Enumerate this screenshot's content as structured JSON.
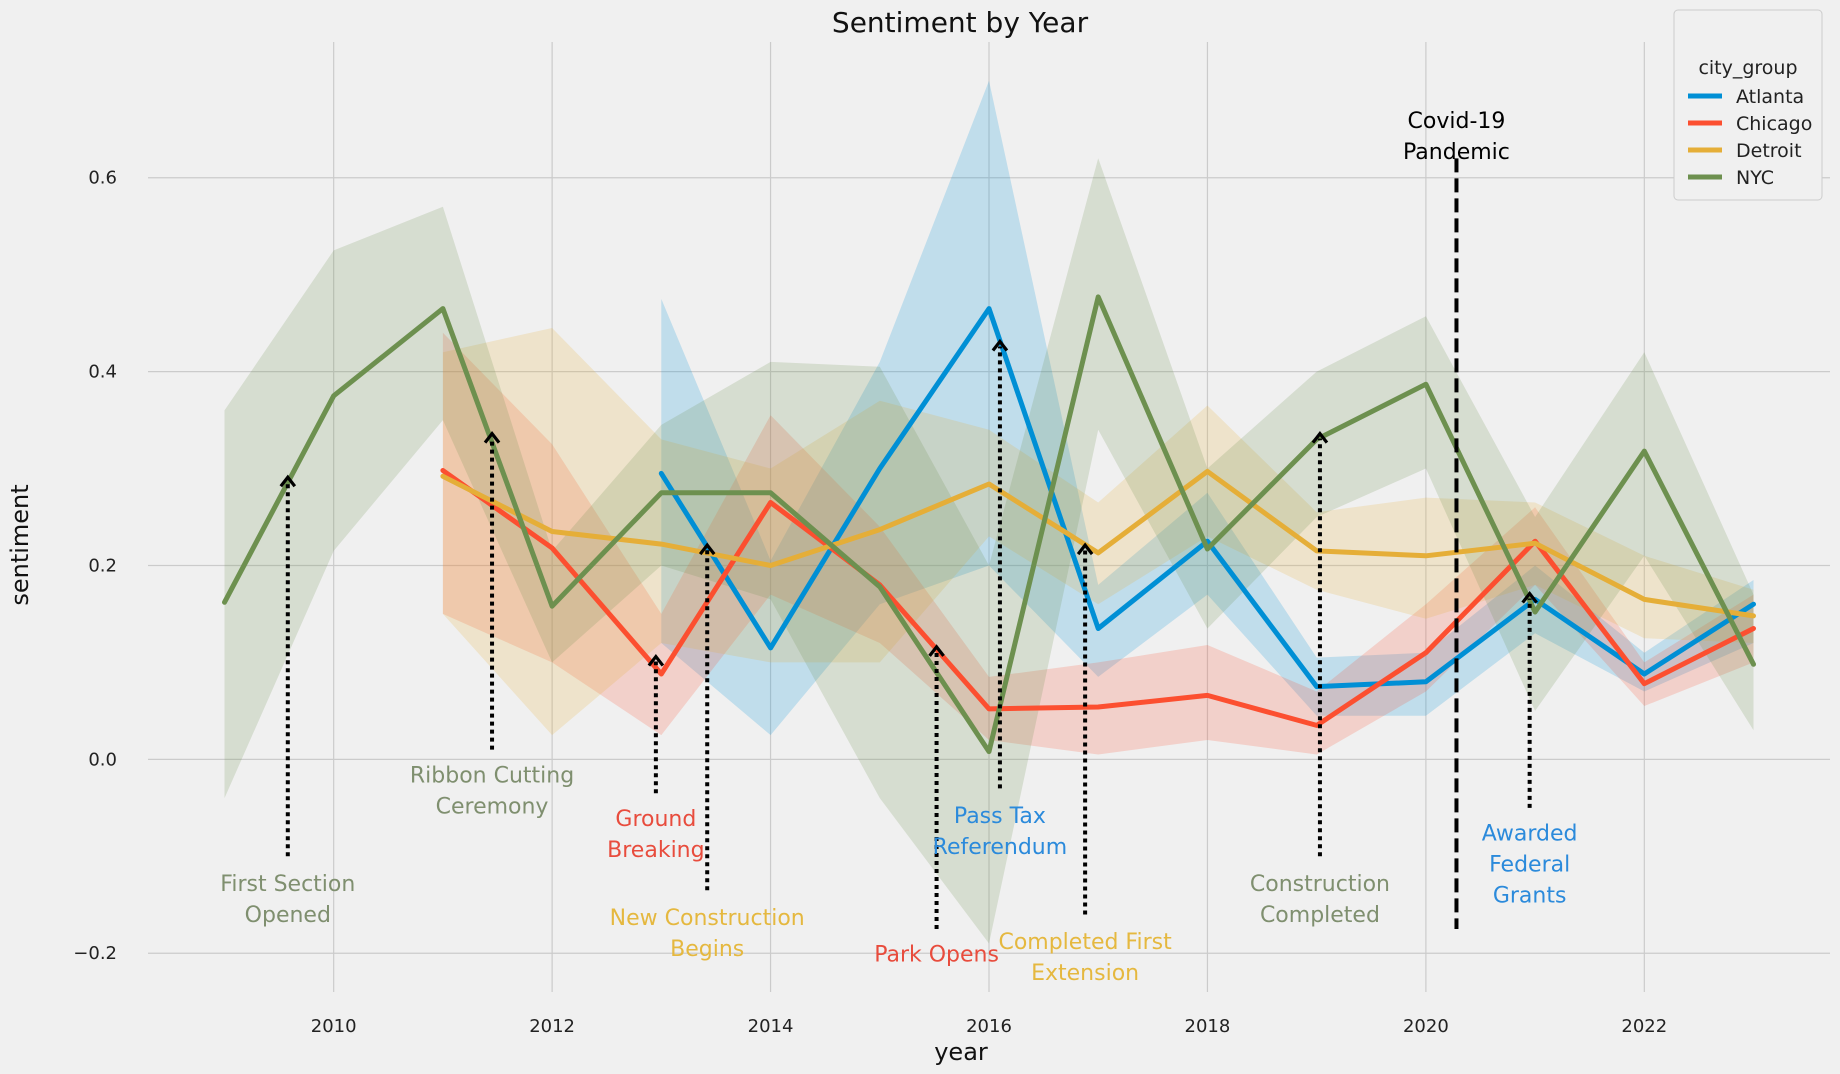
{
  "chart_data": {
    "type": "line",
    "title": "Sentiment by Year",
    "xlabel": "year",
    "ylabel": "sentiment",
    "xlim": [
      2008.3,
      2023.7
    ],
    "ylim": [
      -0.24,
      0.74
    ],
    "xticks": [
      2010,
      2012,
      2014,
      2016,
      2018,
      2020,
      2022
    ],
    "yticks": [
      -0.2,
      0.0,
      0.2,
      0.4,
      0.6
    ],
    "xtick_labels": [
      "2010",
      "2012",
      "2014",
      "2016",
      "2018",
      "2020",
      "2022"
    ],
    "ytick_labels": [
      "−0.2",
      "0.0",
      "0.2",
      "0.4",
      "0.6"
    ],
    "grid": true,
    "legend": {
      "title": "city_group",
      "placement": "top-right"
    },
    "series": [
      {
        "name": "Atlanta",
        "color": "#008fd5",
        "x": [
          2013,
          2014,
          2015,
          2016,
          2017,
          2018,
          2019,
          2020,
          2021,
          2022,
          2023
        ],
        "y": [
          0.295,
          0.115,
          0.3,
          0.465,
          0.135,
          0.225,
          0.075,
          0.08,
          0.165,
          0.088,
          0.16
        ],
        "lower": [
          0.12,
          0.025,
          0.16,
          0.2,
          0.085,
          0.17,
          0.045,
          0.045,
          0.13,
          0.07,
          0.12
        ],
        "upper": [
          0.475,
          0.205,
          0.41,
          0.7,
          0.18,
          0.275,
          0.105,
          0.11,
          0.2,
          0.11,
          0.185
        ]
      },
      {
        "name": "Chicago",
        "color": "#fc4f30",
        "x": [
          2011,
          2012,
          2013,
          2014,
          2015,
          2016,
          2017,
          2018,
          2019,
          2020,
          2021,
          2022,
          2023
        ],
        "y": [
          0.298,
          0.218,
          0.088,
          0.265,
          0.18,
          0.052,
          0.054,
          0.066,
          0.035,
          0.11,
          0.225,
          0.078,
          0.135
        ],
        "lower": [
          0.15,
          0.1,
          0.025,
          0.17,
          0.12,
          0.02,
          0.005,
          0.02,
          0.005,
          0.07,
          0.18,
          0.055,
          0.1
        ],
        "upper": [
          0.44,
          0.325,
          0.15,
          0.355,
          0.24,
          0.085,
          0.1,
          0.118,
          0.07,
          0.16,
          0.26,
          0.1,
          0.17
        ]
      },
      {
        "name": "Detroit",
        "color": "#e5ae38",
        "x": [
          2011,
          2012,
          2013,
          2014,
          2015,
          2016,
          2017,
          2018,
          2019,
          2020,
          2021,
          2022,
          2023
        ],
        "y": [
          0.292,
          0.235,
          0.222,
          0.2,
          0.237,
          0.284,
          0.213,
          0.297,
          0.215,
          0.21,
          0.223,
          0.165,
          0.148
        ],
        "lower": [
          0.15,
          0.025,
          0.12,
          0.1,
          0.1,
          0.23,
          0.16,
          0.23,
          0.175,
          0.145,
          0.18,
          0.125,
          0.12
        ],
        "upper": [
          0.42,
          0.445,
          0.33,
          0.3,
          0.37,
          0.34,
          0.265,
          0.365,
          0.255,
          0.27,
          0.265,
          0.21,
          0.175
        ]
      },
      {
        "name": "NYC",
        "color": "#6d904f",
        "x": [
          2009,
          2010,
          2011,
          2012,
          2013,
          2014,
          2015,
          2016,
          2017,
          2018,
          2019,
          2020,
          2021,
          2022,
          2023
        ],
        "y": [
          0.162,
          0.375,
          0.465,
          0.158,
          0.275,
          0.275,
          0.178,
          0.008,
          0.477,
          0.217,
          0.33,
          0.387,
          0.152,
          0.318,
          0.098
        ],
        "lower": [
          -0.04,
          0.215,
          0.35,
          0.1,
          0.2,
          0.165,
          -0.04,
          -0.19,
          0.34,
          0.135,
          0.25,
          0.3,
          0.05,
          0.21,
          0.03
        ],
        "upper": [
          0.36,
          0.525,
          0.57,
          0.215,
          0.345,
          0.41,
          0.405,
          0.2,
          0.62,
          0.3,
          0.4,
          0.457,
          0.25,
          0.42,
          0.17
        ]
      }
    ],
    "annotations": [
      {
        "text": [
          "First Section",
          "Opened"
        ],
        "color": "#7f8f6f",
        "arrow_x": 2009.58,
        "arrow_y": 0.29,
        "tail_y": -0.1,
        "text_y": -0.115
      },
      {
        "text": [
          "Ribbon Cutting",
          "Ceremony"
        ],
        "color": "#7f8f6f",
        "arrow_x": 2011.45,
        "arrow_y": 0.335,
        "tail_y": 0.01,
        "text_y": -0.003
      },
      {
        "text": [
          "Ground",
          "Breaking"
        ],
        "color": "#e84c3d",
        "arrow_x": 2012.95,
        "arrow_y": 0.105,
        "tail_y": -0.035,
        "text_y": -0.048
      },
      {
        "text": [
          "New Construction",
          "Begins"
        ],
        "color": "#e5b83f",
        "arrow_x": 2013.42,
        "arrow_y": 0.22,
        "tail_y": -0.135,
        "text_y": -0.15
      },
      {
        "text": [
          "Park Opens"
        ],
        "color": "#e84c3d",
        "arrow_x": 2015.52,
        "arrow_y": 0.115,
        "tail_y": -0.175,
        "text_y": -0.188
      },
      {
        "text": [
          "Pass Tax",
          "Referendum"
        ],
        "color": "#2b8adb",
        "arrow_x": 2016.1,
        "arrow_y": 0.43,
        "tail_y": -0.03,
        "text_y": -0.045
      },
      {
        "text": [
          "Completed First",
          "Extension"
        ],
        "color": "#e5b83f",
        "arrow_x": 2016.88,
        "arrow_y": 0.22,
        "tail_y": -0.16,
        "text_y": -0.175
      },
      {
        "text": [
          "Construction",
          "Completed"
        ],
        "color": "#7f8f6f",
        "arrow_x": 2019.03,
        "arrow_y": 0.335,
        "tail_y": -0.1,
        "text_y": -0.115
      },
      {
        "text": [
          "Awarded",
          "Federal",
          "Grants"
        ],
        "color": "#2b8adb",
        "arrow_x": 2020.95,
        "arrow_y": 0.17,
        "tail_y": -0.05,
        "text_y": -0.063
      }
    ],
    "event_line": {
      "text": [
        "Covid-19",
        "Pandemic"
      ],
      "color": "#000000",
      "x": 2020.28,
      "y_top": 0.62,
      "y_bottom": -0.175
    }
  }
}
